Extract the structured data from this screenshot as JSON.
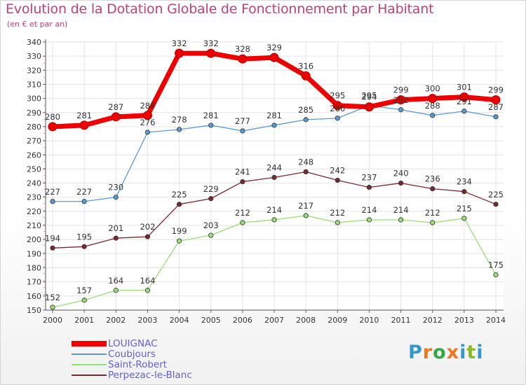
{
  "title": "Evolution de la Dotation Globale de Fonctionnement par Habitant",
  "subtitle": "(en € et par an)",
  "logo_text": "Proxiti",
  "chart_data": {
    "type": "line",
    "title": "Evolution de la Dotation Globale de Fonctionnement par Habitant",
    "ylabel": "(en € et par an)",
    "xlabel": "",
    "ylim": [
      150,
      340
    ],
    "ytick_step": 10,
    "grid": true,
    "x": [
      "2000",
      "2001",
      "2002",
      "2003",
      "2004",
      "2005",
      "2006",
      "2007",
      "2008",
      "2009",
      "2010",
      "2011",
      "2012",
      "2013",
      "2014"
    ],
    "series": [
      {
        "name": "LOUIGNAC",
        "color": "#ee0000",
        "values": [
          280,
          281,
          287,
          288,
          332,
          332,
          328,
          329,
          316,
          295,
          294,
          299,
          300,
          301,
          299
        ]
      },
      {
        "name": "Coubjours",
        "color": "#5a9ad3",
        "values": [
          227,
          227,
          230,
          276,
          278,
          281,
          277,
          281,
          285,
          286,
          295,
          292,
          288,
          291,
          287
        ]
      },
      {
        "name": "Saint-Robert",
        "color": "#99dd77",
        "values": [
          152,
          157,
          164,
          164,
          199,
          203,
          212,
          214,
          217,
          212,
          214,
          214,
          212,
          215,
          175
        ]
      },
      {
        "name": "Perpezac-le-Blanc",
        "color": "#7a2830",
        "values": [
          194,
          195,
          201,
          202,
          225,
          229,
          241,
          244,
          248,
          242,
          237,
          240,
          236,
          234,
          225
        ]
      }
    ]
  }
}
